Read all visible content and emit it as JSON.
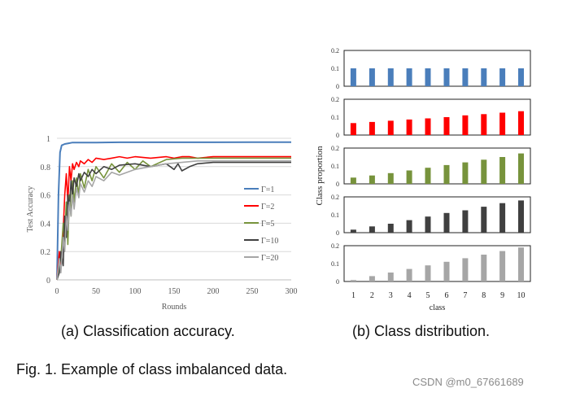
{
  "colors": {
    "gamma1": "#4a7ebb",
    "gamma2": "#ff0000",
    "gamma5": "#77933c",
    "gamma10": "#404040",
    "gamma20": "#a6a6a6",
    "grid": "#d9d9d9",
    "axis_text": "#595959"
  },
  "captions": {
    "a": "(a) Classification accuracy.",
    "b": "(b) Class distribution.",
    "fig": "Fig. 1. Example of class imbalanced data."
  },
  "watermark": "CSDN @m0_67661689",
  "chart_data": [
    {
      "type": "line",
      "xlabel": "Rounds",
      "ylabel": "Test Accuracy",
      "xlim": [
        0,
        300
      ],
      "ylim": [
        0,
        1
      ],
      "xticks": [
        "0",
        "50",
        "100",
        "150",
        "200",
        "250",
        "300"
      ],
      "yticks": [
        "0",
        "0.2",
        "0.4",
        "0.6",
        "0.8",
        "1"
      ],
      "grid": "horizontal",
      "legend_position": "right",
      "series": [
        {
          "name": "Γ=1",
          "x": [
            0,
            2,
            4,
            6,
            10,
            15,
            20,
            30,
            50,
            80,
            100,
            150,
            200,
            250,
            300
          ],
          "y": [
            0.0,
            0.6,
            0.9,
            0.95,
            0.96,
            0.965,
            0.97,
            0.97,
            0.97,
            0.972,
            0.972,
            0.972,
            0.972,
            0.973,
            0.973
          ]
        },
        {
          "name": "Γ=2",
          "x": [
            0,
            3,
            5,
            8,
            10,
            12,
            14,
            16,
            18,
            20,
            22,
            25,
            28,
            30,
            35,
            40,
            45,
            50,
            60,
            70,
            80,
            90,
            100,
            120,
            140,
            150,
            160,
            170,
            180,
            200,
            220,
            250,
            300
          ],
          "y": [
            0.0,
            0.2,
            0.1,
            0.35,
            0.6,
            0.75,
            0.55,
            0.8,
            0.7,
            0.82,
            0.78,
            0.83,
            0.8,
            0.84,
            0.82,
            0.85,
            0.83,
            0.86,
            0.85,
            0.86,
            0.87,
            0.86,
            0.87,
            0.86,
            0.87,
            0.86,
            0.87,
            0.87,
            0.86,
            0.87,
            0.87,
            0.87,
            0.87
          ]
        },
        {
          "name": "Γ=5",
          "x": [
            0,
            3,
            5,
            8,
            10,
            12,
            14,
            16,
            18,
            20,
            22,
            25,
            28,
            30,
            35,
            40,
            45,
            50,
            60,
            70,
            80,
            90,
            100,
            110,
            120,
            140,
            160,
            180,
            200,
            250,
            300
          ],
          "y": [
            0.0,
            0.1,
            0.15,
            0.4,
            0.3,
            0.55,
            0.25,
            0.6,
            0.45,
            0.7,
            0.55,
            0.72,
            0.6,
            0.75,
            0.65,
            0.78,
            0.7,
            0.8,
            0.72,
            0.82,
            0.76,
            0.83,
            0.78,
            0.84,
            0.8,
            0.85,
            0.86,
            0.86,
            0.86,
            0.86,
            0.86
          ]
        },
        {
          "name": "Γ=10",
          "x": [
            0,
            3,
            5,
            8,
            10,
            12,
            14,
            16,
            18,
            20,
            22,
            25,
            28,
            30,
            35,
            40,
            45,
            50,
            60,
            70,
            80,
            100,
            120,
            140,
            150,
            155,
            160,
            170,
            180,
            200,
            250,
            300
          ],
          "y": [
            0.0,
            0.05,
            0.2,
            0.1,
            0.45,
            0.3,
            0.6,
            0.5,
            0.7,
            0.6,
            0.72,
            0.66,
            0.75,
            0.7,
            0.76,
            0.73,
            0.78,
            0.75,
            0.8,
            0.78,
            0.81,
            0.82,
            0.8,
            0.82,
            0.78,
            0.82,
            0.77,
            0.8,
            0.82,
            0.83,
            0.83,
            0.83
          ]
        },
        {
          "name": "Γ=20",
          "x": [
            0,
            3,
            5,
            8,
            10,
            12,
            14,
            16,
            18,
            20,
            22,
            25,
            28,
            30,
            35,
            40,
            45,
            50,
            60,
            70,
            80,
            100,
            120,
            140,
            160,
            180,
            200,
            250,
            300
          ],
          "y": [
            0.0,
            0.15,
            0.05,
            0.3,
            0.2,
            0.45,
            0.35,
            0.55,
            0.45,
            0.6,
            0.5,
            0.65,
            0.58,
            0.68,
            0.62,
            0.7,
            0.66,
            0.73,
            0.7,
            0.76,
            0.74,
            0.78,
            0.8,
            0.82,
            0.83,
            0.84,
            0.84,
            0.84,
            0.84
          ]
        }
      ]
    },
    {
      "type": "bar",
      "xlabel": "class",
      "ylabel": "Class proportion",
      "categories": [
        "1",
        "2",
        "3",
        "4",
        "5",
        "6",
        "7",
        "8",
        "9",
        "10"
      ],
      "ylim": [
        0,
        0.2
      ],
      "yticks": [
        "0",
        "0.1",
        "0.2"
      ],
      "panels": [
        {
          "color_key": "gamma1",
          "values": [
            0.1,
            0.1,
            0.1,
            0.1,
            0.1,
            0.1,
            0.1,
            0.1,
            0.1,
            0.1
          ]
        },
        {
          "color_key": "gamma2",
          "values": [
            0.067,
            0.073,
            0.08,
            0.087,
            0.093,
            0.1,
            0.11,
            0.117,
            0.125,
            0.133
          ]
        },
        {
          "color_key": "gamma5",
          "values": [
            0.035,
            0.047,
            0.06,
            0.075,
            0.09,
            0.105,
            0.12,
            0.135,
            0.15,
            0.17
          ]
        },
        {
          "color_key": "gamma10",
          "values": [
            0.017,
            0.035,
            0.05,
            0.07,
            0.09,
            0.11,
            0.125,
            0.145,
            0.165,
            0.18
          ]
        },
        {
          "color_key": "gamma20",
          "values": [
            0.008,
            0.03,
            0.05,
            0.07,
            0.09,
            0.11,
            0.13,
            0.15,
            0.17,
            0.19
          ]
        }
      ]
    }
  ]
}
